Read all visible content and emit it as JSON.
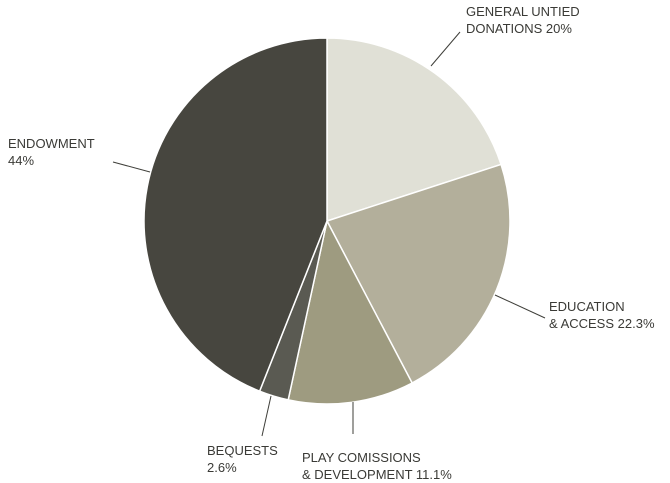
{
  "chart_data": {
    "type": "pie",
    "title": "",
    "slices": [
      {
        "name": "GENERAL UNTIED DONATIONS",
        "value": 20.0,
        "color": "#e0e0d6",
        "label_lines": [
          "GENERAL UNTIED",
          "DONATIONS 20%"
        ]
      },
      {
        "name": "EDUCATION & ACCESS",
        "value": 22.3,
        "color": "#b3af9b",
        "label_lines": [
          "EDUCATION",
          "& ACCESS 22.3%"
        ]
      },
      {
        "name": "PLAY COMISSIONS & DEVELOPMENT",
        "value": 11.1,
        "color": "#9e9b80",
        "label_lines": [
          "PLAY COMISSIONS",
          "& DEVELOPMENT 11.1%"
        ]
      },
      {
        "name": "BEQUESTS",
        "value": 2.6,
        "color": "#5a5a52",
        "label_lines": [
          "BEQUESTS",
          "2.6%"
        ]
      },
      {
        "name": "ENDOWMENT",
        "value": 44.0,
        "color": "#47463f",
        "label_lines": [
          "ENDOWMENT",
          "44%"
        ]
      }
    ],
    "start": "12 o'clock",
    "direction": "clockwise",
    "legend": "none"
  }
}
